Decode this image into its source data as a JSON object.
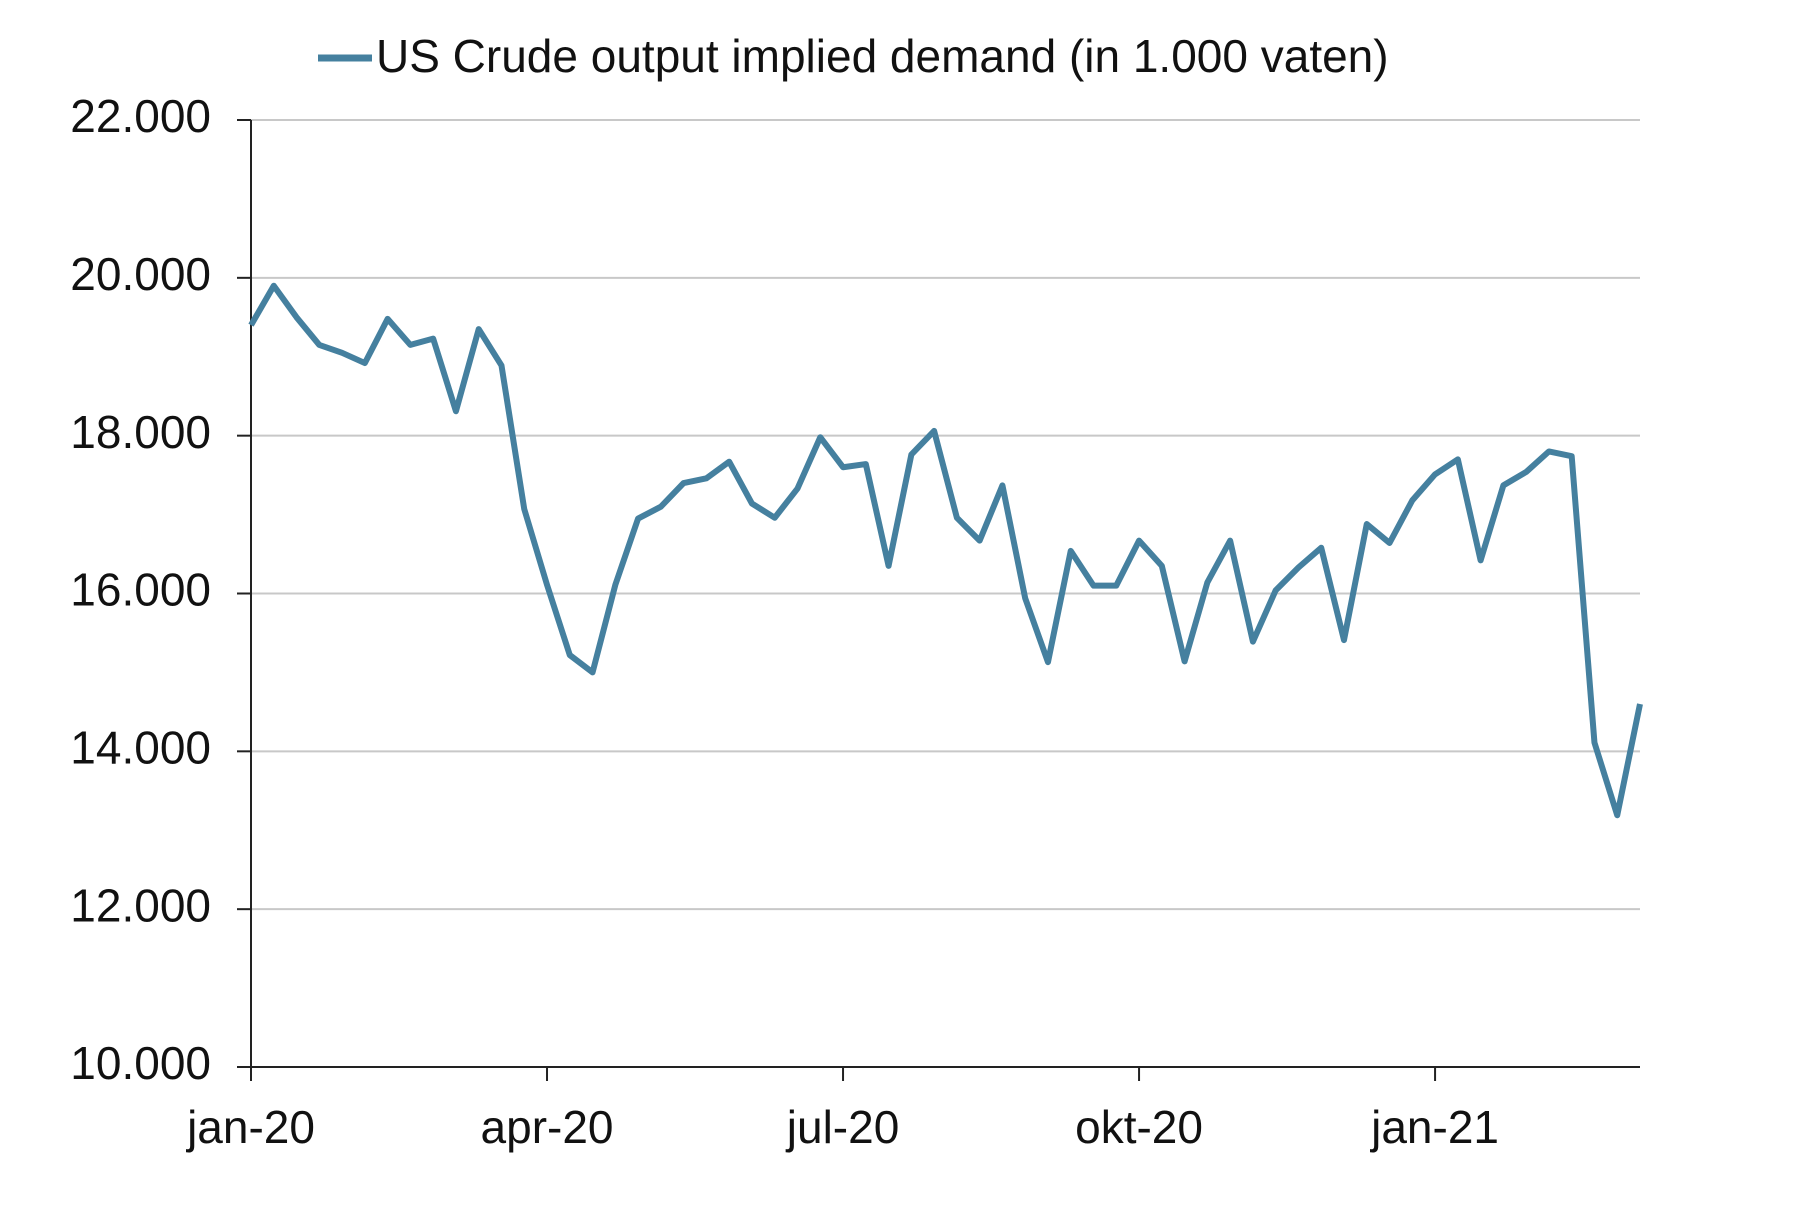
{
  "chart_data": {
    "type": "line",
    "categories": [
      "jan-20",
      null,
      null,
      null,
      null,
      null,
      null,
      null,
      null,
      null,
      null,
      null,
      null,
      "apr-20",
      null,
      null,
      null,
      null,
      null,
      null,
      null,
      null,
      null,
      null,
      null,
      null,
      "jul-20",
      null,
      null,
      null,
      null,
      null,
      null,
      null,
      null,
      null,
      null,
      null,
      null,
      "okt-20",
      null,
      null,
      null,
      null,
      null,
      null,
      null,
      null,
      null,
      null,
      null,
      null,
      "jan-21",
      null,
      null,
      null,
      null,
      null,
      null,
      null,
      null,
      null
    ],
    "series": [
      {
        "name": "US Crude output implied demand (in 1.000 vaten)",
        "color": "#45809f",
        "values": [
          19400,
          19900,
          19500,
          19150,
          19050,
          18920,
          19480,
          19150,
          19230,
          18310,
          19350,
          18890,
          17070,
          16110,
          15220,
          15000,
          16110,
          16950,
          17100,
          17400,
          17460,
          17670,
          17140,
          16960,
          17330,
          17980,
          17600,
          17640,
          16350,
          17760,
          18060,
          16960,
          16670,
          17370,
          15940,
          15130,
          16540,
          16100,
          16100,
          16670,
          16350,
          15140,
          16140,
          16670,
          15390,
          16040,
          16330,
          16580,
          15410,
          16880,
          16640,
          17180,
          17510,
          17700,
          16420,
          17370,
          17540,
          17800,
          17740,
          14110,
          13190,
          14600
        ]
      }
    ],
    "ylim": [
      10000,
      22000
    ],
    "yticks": [
      {
        "value": 10000,
        "label": "10.000"
      },
      {
        "value": 12000,
        "label": "12.000"
      },
      {
        "value": 14000,
        "label": "14.000"
      },
      {
        "value": 16000,
        "label": "16.000"
      },
      {
        "value": 18000,
        "label": "18.000"
      },
      {
        "value": 20000,
        "label": "20.000"
      },
      {
        "value": 22000,
        "label": "22.000"
      }
    ],
    "grid": true
  }
}
